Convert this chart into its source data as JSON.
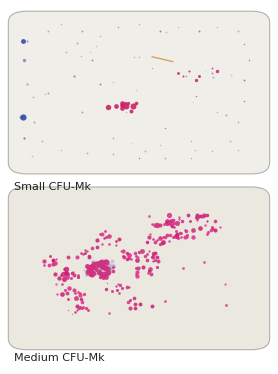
{
  "background_color": "#ffffff",
  "panel1": {
    "label": "Small CFU-Mk",
    "label_fontsize": 8,
    "inner_bg": "#f0eee8",
    "border_color": "#b0b0b0",
    "border_lw": 0.8
  },
  "panel2": {
    "label": "Medium CFU-Mk",
    "label_fontsize": 8,
    "inner_bg": "#ebe8e0",
    "border_color": "#b0b0b0",
    "border_lw": 0.8
  }
}
